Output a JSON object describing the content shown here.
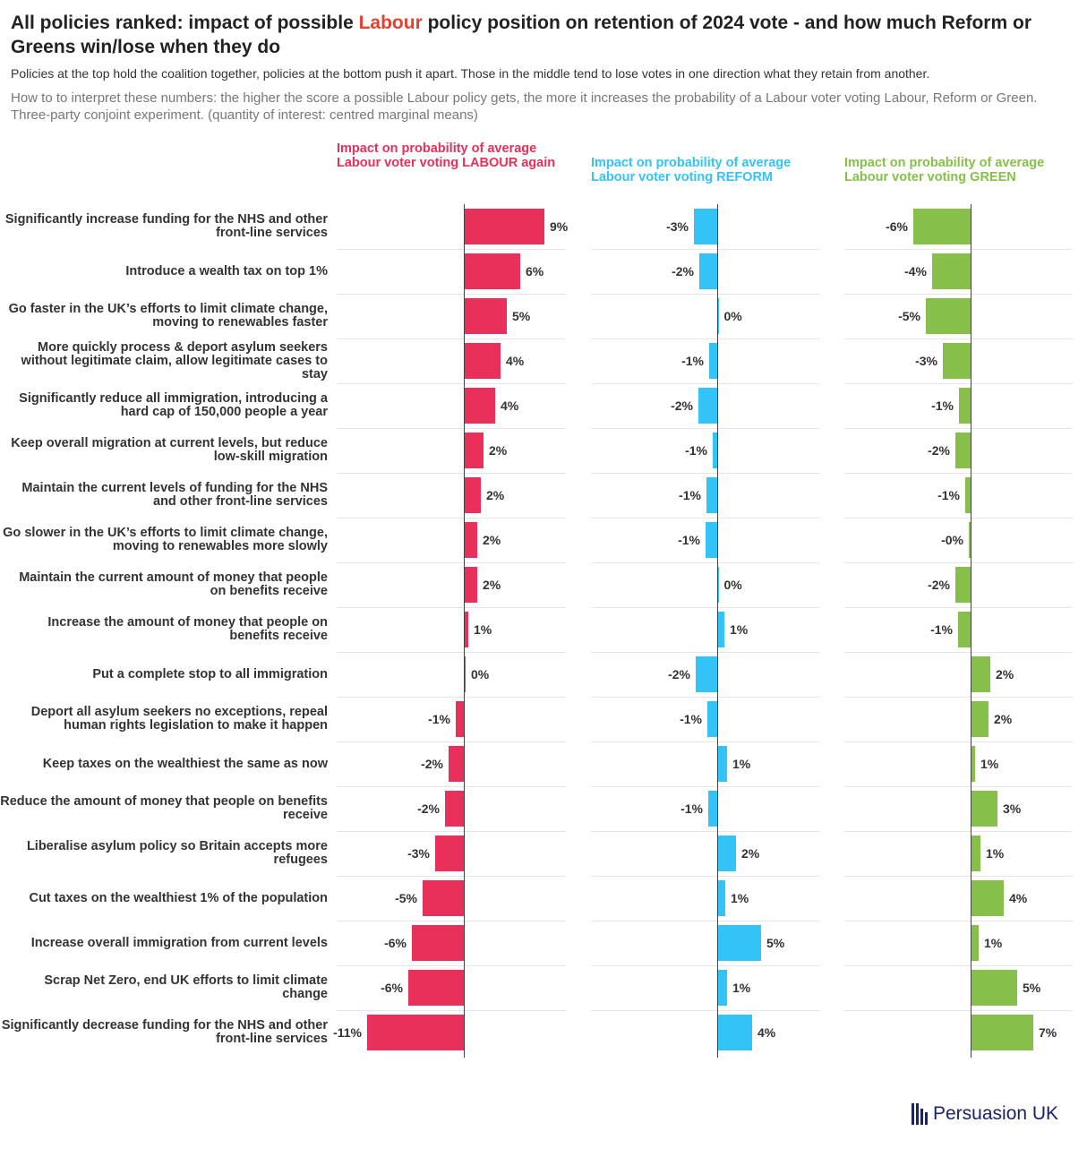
{
  "title": {
    "before": "All policies ranked: impact of possible ",
    "highlight": "Labour",
    "after": " policy position on retention of 2024 vote - and how much Reform or Greens win/lose when they do"
  },
  "subtitle": "Policies at the top hold the coalition together, policies at the bottom push it apart. Those in the middle tend to lose votes in one direction what they retain from another.",
  "interpretation": "How to to interpret these numbers: the higher the score a possible Labour policy gets, the more it increases the probability of a Labour voter voting Labour, Reform or Green. Three-party conjoint experiment. (quantity of interest: centred marginal means)",
  "logo": "Persuasion UK",
  "colors": {
    "labour": "#e8305a",
    "reform": "#33c3f7",
    "green": "#86c04a",
    "title_highlight": "#e8402e"
  },
  "chart_data": {
    "type": "bar",
    "orientation": "horizontal",
    "unit": "%",
    "categories": [
      "Significantly increase funding for the NHS and other front-line services",
      "Introduce a wealth tax on top 1%",
      "Go faster in the UK's efforts to limit climate change, moving to renewables faster",
      "More quickly process & deport asylum seekers without legitimate claim, allow legitimate cases to stay",
      "Significantly reduce all immigration, introducing a hard cap of 150,000 people a year",
      "Keep overall migration at current levels, but reduce low-skill migration",
      "Maintain the current levels of funding for the NHS and other front-line services",
      "Go slower in the UK's efforts to limit climate change, moving to renewables more slowly",
      "Maintain the current amount of money that people on benefits receive",
      "Increase the amount of money that people on benefits receive",
      "Put a complete stop to all immigration",
      "Deport all asylum seekers no exceptions, repeal human rights legislation to make it happen",
      "Keep taxes on the wealthiest the same as now",
      "Reduce the amount of money that people on benefits receive",
      "Liberalise asylum policy so Britain accepts more refugees",
      "Cut taxes on the wealthiest 1% of the population",
      "Increase overall immigration from current levels",
      "Scrap Net Zero, end UK efforts to limit climate change",
      "Significantly decrease funding for the NHS and other front-line services"
    ],
    "series": [
      {
        "name": "Impact on probability of average Labour voter voting LABOUR again",
        "key": "labour",
        "values": [
          9.0,
          6.3,
          4.8,
          4.1,
          3.5,
          2.2,
          1.9,
          1.5,
          1.5,
          0.5,
          0.2,
          -0.9,
          -1.7,
          -2.1,
          -3.2,
          -4.6,
          -5.8,
          -6.2,
          -10.8
        ],
        "labels": [
          "9%",
          "6%",
          "5%",
          "4%",
          "4%",
          "2%",
          "2%",
          "2%",
          "2%",
          "1%",
          "0%",
          "-1%",
          "-2%",
          "-2%",
          "-3%",
          "-5%",
          "-6%",
          "-6%",
          "-11%"
        ]
      },
      {
        "name": "Impact on probability of average Labour voter voting REFORM",
        "key": "reform",
        "values": [
          -2.6,
          -2.0,
          0.1,
          -0.9,
          -2.1,
          -0.5,
          -1.2,
          -1.3,
          0.1,
          0.8,
          -2.4,
          -1.1,
          1.1,
          -1.0,
          2.1,
          0.9,
          4.9,
          1.1,
          3.9
        ],
        "labels": [
          "-3%",
          "-2%",
          "0%",
          "-1%",
          "-2%",
          "-1%",
          "-1%",
          "-1%",
          "0%",
          "1%",
          "-2%",
          "-1%",
          "1%",
          "-1%",
          "2%",
          "1%",
          "5%",
          "1%",
          "4%"
        ]
      },
      {
        "name": "Impact on probability of average Labour voter voting GREEN",
        "key": "green",
        "values": [
          -6.4,
          -4.3,
          -5.0,
          -3.1,
          -1.3,
          -1.7,
          -0.6,
          -0.2,
          -1.7,
          -1.4,
          2.2,
          2.0,
          0.5,
          3.0,
          1.1,
          3.7,
          0.9,
          5.2,
          7.0
        ],
        "labels": [
          "-6%",
          "-4%",
          "-5%",
          "-3%",
          "-1%",
          "-2%",
          "-1%",
          "-0%",
          "-2%",
          "-1%",
          "2%",
          "2%",
          "1%",
          "3%",
          "1%",
          "4%",
          "1%",
          "5%",
          "7%"
        ]
      }
    ]
  }
}
